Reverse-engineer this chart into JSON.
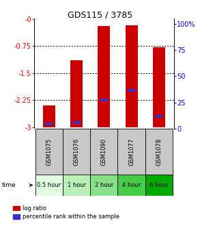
{
  "title": "GDS115 / 3785",
  "samples": [
    "GSM1075",
    "GSM1076",
    "GSM1090",
    "GSM1077",
    "GSM1078"
  ],
  "time_labels": [
    "0.5 hour",
    "1 hour",
    "2 hour",
    "4 hour",
    "6 hour"
  ],
  "log_ratio": [
    -2.4,
    -1.15,
    -0.2,
    -0.18,
    -0.78
  ],
  "percentile": [
    0.03,
    0.04,
    0.25,
    0.34,
    0.1
  ],
  "ymin": -3.0,
  "ymax": 0.0,
  "yticks": [
    -3.0,
    -2.25,
    -1.5,
    -0.75,
    0.0
  ],
  "ytick_labels": [
    "-3",
    "-2.25",
    "-1.5",
    "-0.75",
    "-0"
  ],
  "y2ticks": [
    0,
    25,
    50,
    75,
    100
  ],
  "y2tick_labels": [
    "0",
    "25",
    "50",
    "75",
    "100%"
  ],
  "bar_color": "#cc0000",
  "percentile_color": "#3333cc",
  "bar_width": 0.45,
  "sample_bg": "#c8c8c8",
  "green_shades": [
    "#e0ffe0",
    "#b8f0b8",
    "#88e088",
    "#44cc44",
    "#00aa00"
  ],
  "title_fontsize": 9,
  "tick_fontsize": 7,
  "sample_fontsize": 6,
  "time_fontsize": 6
}
